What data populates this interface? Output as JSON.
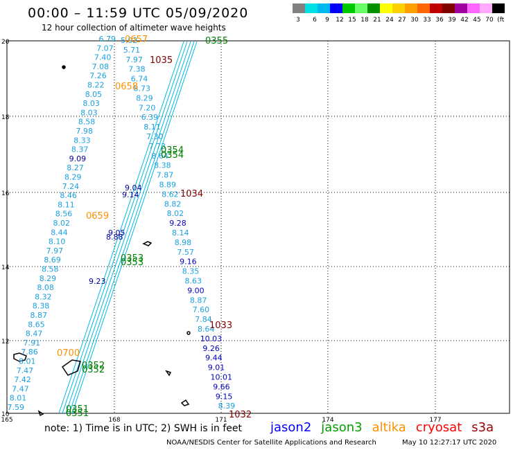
{
  "header": {
    "title": "00:00 – 11:59 UTC 05/09/2020",
    "subtitle": "12 hour collection of altimeter wave heights"
  },
  "colorscale": {
    "labels": [
      "3",
      "6",
      "9",
      "12",
      "15",
      "18",
      "21",
      "24",
      "27",
      "30",
      "33",
      "36",
      "39",
      "42",
      "45",
      "70",
      "(ft)"
    ],
    "colors": [
      "#808080",
      "#00e0e0",
      "#00b8f0",
      "#0000ff",
      "#00c800",
      "#66ff66",
      "#009000",
      "#ffff00",
      "#ffd000",
      "#ffa000",
      "#ff6600",
      "#c00000",
      "#800000",
      "#a000a0",
      "#ff66ff",
      "#ffaaff",
      "#000000"
    ]
  },
  "axes": {
    "x_ticks": [
      "165",
      "168",
      "171",
      "174",
      "177"
    ],
    "y_ticks": [
      "20",
      "18",
      "16",
      "14",
      "12",
      "10"
    ]
  },
  "tracks": {
    "left_track_values": [
      "6.79",
      "7.07",
      "7.40",
      "7.08",
      "7.26",
      "8.22",
      "8.05",
      "8.03",
      "8.03",
      "8.58",
      "7.98",
      "8.33",
      "8.37",
      "9.09",
      "8.27",
      "8.29",
      "7.24",
      "8.46",
      "8.11",
      "8.56",
      "8.02",
      "8.44",
      "8.10",
      "7.97",
      "8.69",
      "8.58",
      "8.29",
      "8.08",
      "8.32",
      "8.38",
      "8.87",
      "8.65",
      "8.47",
      "7.91",
      "7.86",
      "8.01",
      "7.47",
      "7.42",
      "7.47",
      "8.01",
      "7.59"
    ],
    "mid_track_values": [
      "5.92",
      "5.71",
      "7.97",
      "7.38",
      "6.74",
      "8.73",
      "8.29",
      "7.20",
      "6.39",
      "8.11",
      "7.30",
      "7.73",
      "8.64",
      "8.38",
      "7.87",
      "8.89",
      "8.62",
      "8.82",
      "8.02",
      "9.28",
      "8.14",
      "8.98",
      "7.57",
      "9.16",
      "8.35",
      "8.63",
      "9.00",
      "8.87",
      "7.60",
      "7.84",
      "8.64",
      "10.03",
      "9.26",
      "9.44",
      "9.01",
      "10.01",
      "9.66",
      "9.15",
      "8.39"
    ],
    "dark_blue_labels": [
      "9.04",
      "9.14",
      "9.05",
      "8.88",
      "9.23"
    ],
    "time_labels": [
      {
        "text": "0657",
        "color": "#ff9000"
      },
      {
        "text": "0355",
        "color": "#008000"
      },
      {
        "text": "1035",
        "color": "#800000"
      },
      {
        "text": "0658",
        "color": "#ff9000"
      },
      {
        "text": "0354",
        "color": "#008000"
      },
      {
        "text": "0354",
        "color": "#008000"
      },
      {
        "text": "1034",
        "color": "#800000"
      },
      {
        "text": "0659",
        "color": "#ff9000"
      },
      {
        "text": "0353",
        "color": "#008000"
      },
      {
        "text": "0353",
        "color": "#008000"
      },
      {
        "text": "1033",
        "color": "#800000"
      },
      {
        "text": "0700",
        "color": "#ff9000"
      },
      {
        "text": "0352",
        "color": "#008000"
      },
      {
        "text": "0352",
        "color": "#008000"
      },
      {
        "text": "0351",
        "color": "#008000"
      },
      {
        "text": "0351",
        "color": "#008000"
      },
      {
        "text": "1032",
        "color": "#800000"
      }
    ]
  },
  "note": "note: 1) Time is in UTC; 2) SWH is in feet",
  "satellites": [
    {
      "name": "jason2",
      "color": "#0000ff"
    },
    {
      "name": "jason3",
      "color": "#00a000"
    },
    {
      "name": "altika",
      "color": "#ff9000"
    },
    {
      "name": "cryosat",
      "color": "#ff0000"
    },
    {
      "name": "s3a",
      "color": "#a00000"
    }
  ],
  "footer": {
    "left": "NOAA/NESDIS Center for Satellite Applications and Research",
    "right": "May 10 12:27:17 UTC 2020"
  }
}
